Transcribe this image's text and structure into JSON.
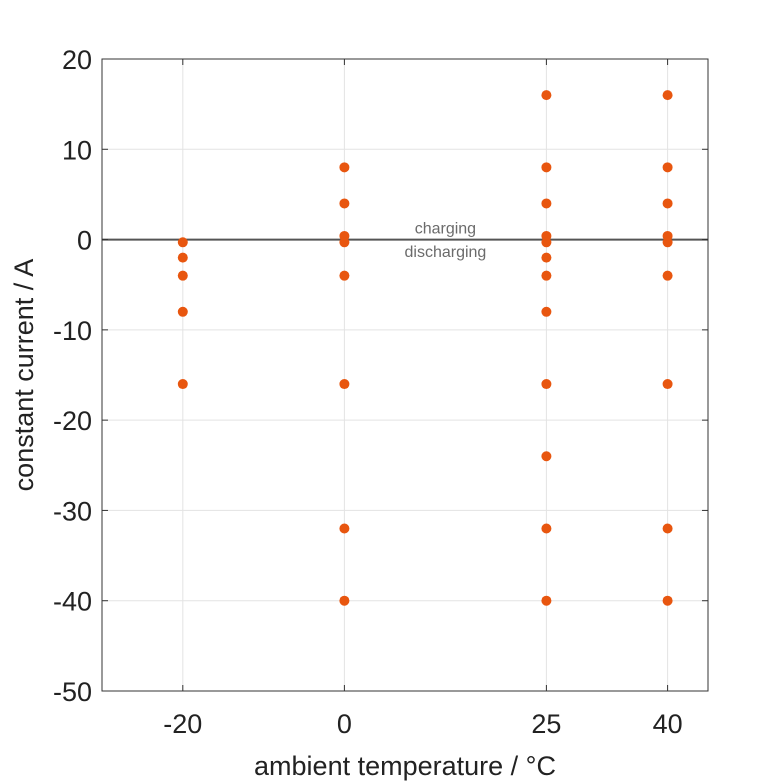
{
  "chart_data": {
    "type": "scatter",
    "title": "",
    "xlabel": "ambient temperature / °C",
    "ylabel": "constant current / A",
    "xlim": [
      -30,
      45
    ],
    "ylim": [
      -50,
      20
    ],
    "xticks": [
      -20,
      0,
      25,
      40
    ],
    "xtick_labels": [
      "-20",
      "0",
      "25",
      "40"
    ],
    "yticks": [
      20,
      10,
      0,
      -10,
      -20,
      -30,
      -40,
      -50
    ],
    "ytick_labels": [
      "20",
      "10",
      "0",
      "-10",
      "-20",
      "-30",
      "-40",
      "-50"
    ],
    "grid": true,
    "marker_color": "#e8560f",
    "zero_line_color": "#555555",
    "annotations": [
      {
        "text": "charging",
        "x": 12.5,
        "y": 1.2
      },
      {
        "text": "discharging",
        "x": 12.5,
        "y": -1.4
      }
    ],
    "points": [
      {
        "x": -20,
        "y": -0.3
      },
      {
        "x": -20,
        "y": -2
      },
      {
        "x": -20,
        "y": -4
      },
      {
        "x": -20,
        "y": -8
      },
      {
        "x": -20,
        "y": -16
      },
      {
        "x": 0,
        "y": 8
      },
      {
        "x": 0,
        "y": 4
      },
      {
        "x": 0,
        "y": 0.4
      },
      {
        "x": 0,
        "y": -0.3
      },
      {
        "x": 0,
        "y": -4
      },
      {
        "x": 0,
        "y": -16
      },
      {
        "x": 0,
        "y": -32
      },
      {
        "x": 0,
        "y": -40
      },
      {
        "x": 25,
        "y": 16
      },
      {
        "x": 25,
        "y": 8
      },
      {
        "x": 25,
        "y": 4
      },
      {
        "x": 25,
        "y": 0.4
      },
      {
        "x": 25,
        "y": -0.3
      },
      {
        "x": 25,
        "y": -2
      },
      {
        "x": 25,
        "y": -4
      },
      {
        "x": 25,
        "y": -8
      },
      {
        "x": 25,
        "y": -16
      },
      {
        "x": 25,
        "y": -24
      },
      {
        "x": 25,
        "y": -32
      },
      {
        "x": 25,
        "y": -40
      },
      {
        "x": 40,
        "y": 16
      },
      {
        "x": 40,
        "y": 8
      },
      {
        "x": 40,
        "y": 4
      },
      {
        "x": 40,
        "y": 0.4
      },
      {
        "x": 40,
        "y": -0.3
      },
      {
        "x": 40,
        "y": -4
      },
      {
        "x": 40,
        "y": -16
      },
      {
        "x": 40,
        "y": -32
      },
      {
        "x": 40,
        "y": -40
      }
    ]
  }
}
